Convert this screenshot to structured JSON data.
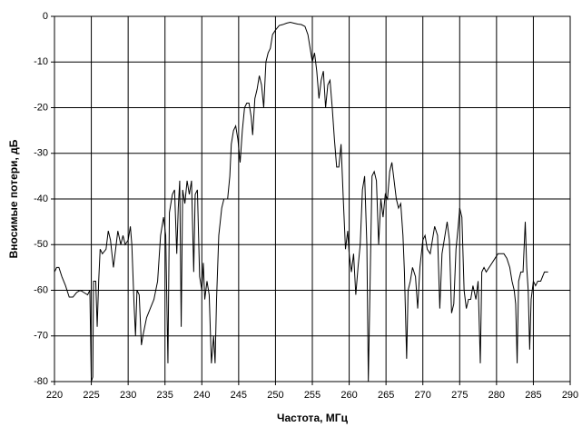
{
  "chart_data": {
    "type": "line",
    "x_label": "Частота, МГц",
    "y_label": "Вносимые потери, дБ",
    "color": "#000000",
    "grid": true,
    "xlim": [
      220,
      290
    ],
    "ylim": [
      -80,
      0
    ],
    "xticks": [
      220,
      225,
      230,
      235,
      240,
      245,
      250,
      255,
      260,
      265,
      270,
      275,
      280,
      285,
      290
    ],
    "yticks": [
      -80,
      -70,
      -60,
      -50,
      -40,
      -30,
      -20,
      -10,
      0
    ],
    "x": [
      220,
      220.3,
      220.6,
      221,
      221.5,
      222,
      222.5,
      223,
      223.5,
      224,
      224.5,
      224.8,
      225,
      225.2,
      225.3,
      225.6,
      225.8,
      226,
      226.2,
      226.5,
      227,
      227.3,
      227.6,
      228,
      228.3,
      228.6,
      229,
      229.3,
      229.6,
      230,
      230.3,
      230.5,
      230.8,
      231,
      231.2,
      231.5,
      231.8,
      232,
      232.5,
      233,
      233.5,
      234,
      234.4,
      234.8,
      235.1,
      235.4,
      235.6,
      236,
      236.3,
      236.6,
      236.8,
      237,
      237.2,
      237.4,
      237.7,
      238,
      238.3,
      238.6,
      238.9,
      239.1,
      239.4,
      239.7,
      240,
      240.2,
      240.4,
      240.7,
      241,
      241.3,
      241.6,
      241.8,
      242,
      242.3,
      242.7,
      243,
      243.5,
      243.8,
      244,
      244.3,
      244.6,
      244.9,
      245.2,
      245.5,
      245.8,
      246.1,
      246.4,
      246.7,
      246.9,
      247.2,
      247.5,
      247.8,
      248.1,
      248.4,
      248.7,
      249,
      249.3,
      249.6,
      250,
      250.5,
      251,
      251.5,
      252,
      252.5,
      253,
      253.5,
      254,
      254.4,
      254.7,
      255,
      255.3,
      255.6,
      255.9,
      256.2,
      256.5,
      256.8,
      257.1,
      257.4,
      257.7,
      258,
      258.3,
      258.6,
      258.9,
      259.2,
      259.5,
      259.8,
      260,
      260.3,
      260.6,
      260.9,
      261.2,
      261.5,
      261.8,
      262.1,
      262.4,
      262.6,
      262.8,
      263.1,
      263.4,
      263.7,
      264,
      264.3,
      264.6,
      264.9,
      265.2,
      265.5,
      265.8,
      266.1,
      266.4,
      266.7,
      267,
      267.3,
      267.5,
      267.8,
      268,
      268.3,
      268.6,
      269,
      269.3,
      269.6,
      270,
      270.3,
      270.6,
      271,
      271.3,
      271.6,
      272,
      272.3,
      272.6,
      273,
      273.3,
      273.6,
      273.9,
      274.2,
      274.5,
      274.8,
      275,
      275.3,
      275.6,
      275.9,
      276.2,
      276.5,
      276.8,
      277.2,
      277.5,
      277.8,
      278,
      278.3,
      278.6,
      279,
      279.4,
      279.8,
      280.2,
      280.6,
      281,
      281.4,
      281.8,
      282.1,
      282.4,
      282.6,
      282.8,
      283,
      283.3,
      283.6,
      283.9,
      284.1,
      284.3,
      284.5,
      284.7,
      285,
      285.3,
      285.6,
      286,
      286.5,
      287
    ],
    "values": [
      -56,
      -55,
      -55,
      -57,
      -59,
      -61.5,
      -61.5,
      -60.5,
      -60,
      -60.5,
      -61,
      -60,
      -80,
      -79,
      -58,
      -58,
      -68,
      -58,
      -51,
      -52,
      -51,
      -47,
      -49,
      -55,
      -51,
      -47,
      -50,
      -48,
      -50,
      -49,
      -46,
      -50,
      -63,
      -70,
      -60,
      -61,
      -72,
      -70,
      -66,
      -64,
      -62,
      -58,
      -48,
      -44,
      -48,
      -76,
      -43,
      -39,
      -38,
      -52,
      -42,
      -36,
      -68,
      -38,
      -41,
      -36,
      -39,
      -36,
      -56,
      -39,
      -38,
      -57,
      -60,
      -54,
      -62,
      -58,
      -61,
      -76,
      -70,
      -76,
      -62,
      -48,
      -42,
      -40,
      -40,
      -35,
      -28,
      -25,
      -24,
      -27,
      -32,
      -25,
      -20,
      -19,
      -19,
      -22,
      -26,
      -18,
      -16,
      -13,
      -15,
      -20,
      -10,
      -8,
      -7,
      -4,
      -3,
      -2,
      -1.8,
      -1.5,
      -1.3,
      -1.5,
      -1.7,
      -1.8,
      -2.2,
      -4,
      -7,
      -10,
      -8,
      -12,
      -18,
      -14,
      -12,
      -20,
      -15,
      -14,
      -20,
      -27,
      -33,
      -33,
      -28,
      -40,
      -51,
      -47,
      -52,
      -56,
      -52,
      -61,
      -55,
      -50,
      -38,
      -35,
      -50,
      -80,
      -62,
      -35,
      -34,
      -36,
      -50,
      -40,
      -44,
      -39,
      -40,
      -34,
      -32,
      -36,
      -40,
      -42,
      -41,
      -48,
      -56,
      -75,
      -60,
      -58,
      -55,
      -57,
      -64,
      -55,
      -49,
      -48,
      -51,
      -52,
      -49,
      -46,
      -48,
      -64,
      -52,
      -48,
      -45,
      -49,
      -65,
      -63,
      -51,
      -46,
      -42,
      -44,
      -60,
      -64,
      -62,
      -62,
      -59,
      -62,
      -58,
      -76,
      -56,
      -55,
      -56,
      -55,
      -54,
      -53,
      -52,
      -52,
      -52,
      -53,
      -55,
      -58,
      -60,
      -63,
      -76,
      -58,
      -56,
      -56,
      -45,
      -55,
      -60,
      -73,
      -62,
      -58,
      -59,
      -58,
      -58,
      -56,
      -56
    ]
  }
}
